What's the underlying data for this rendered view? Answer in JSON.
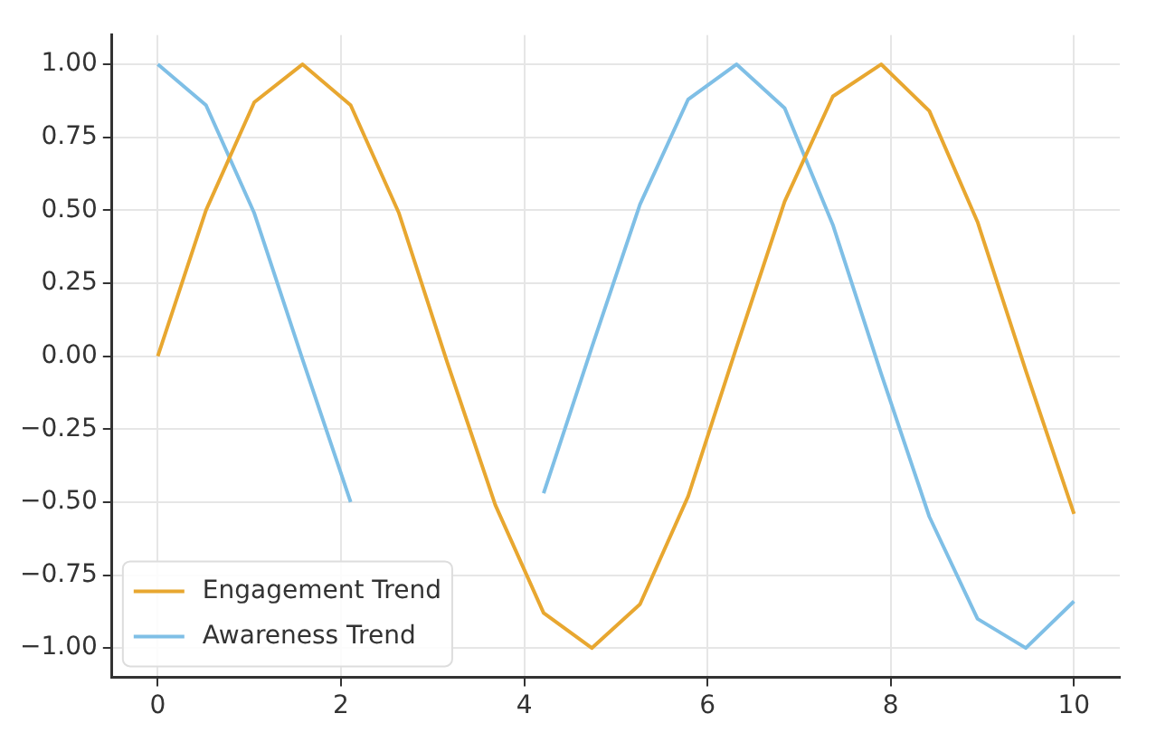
{
  "chart_data": {
    "type": "line",
    "x": [
      0,
      0.526,
      1.053,
      1.579,
      2.105,
      2.632,
      3.158,
      3.684,
      4.211,
      4.737,
      5.263,
      5.789,
      6.316,
      6.842,
      7.368,
      7.895,
      8.421,
      8.947,
      9.474,
      10
    ],
    "series": [
      {
        "name": "Engagement Trend",
        "color": "#e8a730",
        "values": [
          0,
          0.5,
          0.87,
          1.0,
          0.86,
          0.49,
          -0.02,
          -0.51,
          -0.88,
          -1.0,
          -0.85,
          -0.48,
          0.03,
          0.53,
          0.89,
          1.0,
          0.84,
          0.46,
          -0.05,
          -0.54
        ]
      },
      {
        "name": "Awareness Trend",
        "color": "#7fbfe6",
        "values": [
          1.0,
          0.86,
          0.49,
          -0.01,
          -0.5,
          null,
          null,
          null,
          -0.47,
          0.03,
          0.52,
          0.88,
          1.0,
          0.85,
          0.45,
          -0.06,
          -0.55,
          -0.9,
          -1.0,
          -0.84
        ]
      }
    ],
    "xlim": [
      -0.5,
      10.5
    ],
    "xticks": [
      0,
      2,
      4,
      6,
      8,
      10
    ],
    "ylim": [
      -1.1,
      1.1
    ],
    "yticks": [
      {
        "value": -1,
        "label": "−1.00"
      },
      {
        "value": -0.75,
        "label": "−0.75"
      },
      {
        "value": -0.5,
        "label": "−0.50"
      },
      {
        "value": -0.25,
        "label": "−0.25"
      },
      {
        "value": 0,
        "label": "0.00"
      },
      {
        "value": 0.25,
        "label": "0.25"
      },
      {
        "value": 0.5,
        "label": "0.50"
      },
      {
        "value": 0.75,
        "label": "0.75"
      },
      {
        "value": 1,
        "label": "1.00"
      }
    ],
    "grid": true,
    "legend": "bottom left",
    "marker": "none",
    "line_style": "solid"
  }
}
